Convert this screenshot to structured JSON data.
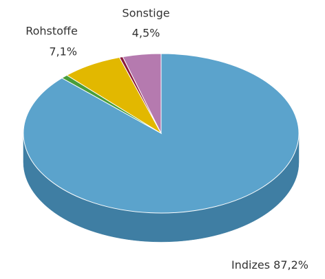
{
  "chart_data": {
    "type": "pie",
    "categories": [
      "Indizes",
      null,
      "Rohstoffe",
      null,
      "Sonstige"
    ],
    "values": [
      87.2,
      0.8,
      7.1,
      0.4,
      4.5
    ],
    "value_labels": [
      "87,2%",
      null,
      "7,1%",
      null,
      "4,5%"
    ],
    "colors": [
      "#5ba3cc",
      "#4a9e3a",
      "#e2b800",
      "#8b1a3a",
      "#b57aaf"
    ],
    "side_colors": [
      "#3f7ea3",
      "#347a28",
      "#b08f00",
      "#5e1027",
      "#8a5a86"
    ]
  }
}
